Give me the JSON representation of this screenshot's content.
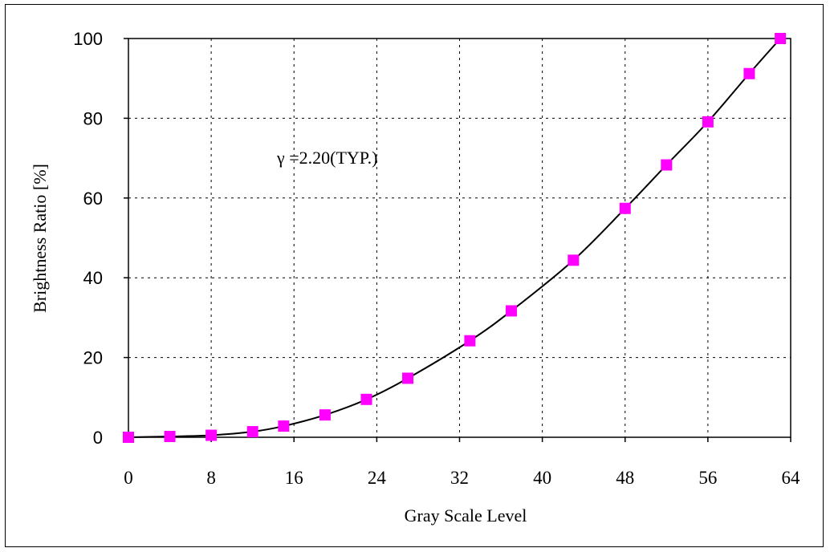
{
  "chart_data": {
    "type": "line",
    "title": "",
    "xlabel": "Gray Scale Level",
    "ylabel": "Brightness Ratio [%]",
    "annotation": "γ =2.20(TYP.)",
    "xlim": [
      0,
      64
    ],
    "ylim": [
      0,
      100
    ],
    "x_ticks": [
      "0",
      "8",
      "16",
      "24",
      "32",
      "40",
      "48",
      "56",
      "64"
    ],
    "y_ticks": [
      "0",
      "20",
      "40",
      "60",
      "80",
      "100"
    ],
    "grid": true,
    "marker_color": "#ff00ff",
    "line_color": "#000000",
    "points": [
      {
        "x": 0,
        "y": 0
      },
      {
        "x": 4,
        "y": 0.2
      },
      {
        "x": 8,
        "y": 0.5
      },
      {
        "x": 12,
        "y": 1.4
      },
      {
        "x": 15,
        "y": 2.8
      },
      {
        "x": 19,
        "y": 5.6
      },
      {
        "x": 23,
        "y": 9.5
      },
      {
        "x": 27,
        "y": 14.8
      },
      {
        "x": 33,
        "y": 24.2
      },
      {
        "x": 37,
        "y": 31.7
      },
      {
        "x": 43,
        "y": 44.4
      },
      {
        "x": 48,
        "y": 57.4
      },
      {
        "x": 52,
        "y": 68.3
      },
      {
        "x": 56,
        "y": 79.1
      },
      {
        "x": 60,
        "y": 91.2
      },
      {
        "x": 63,
        "y": 100
      }
    ]
  }
}
